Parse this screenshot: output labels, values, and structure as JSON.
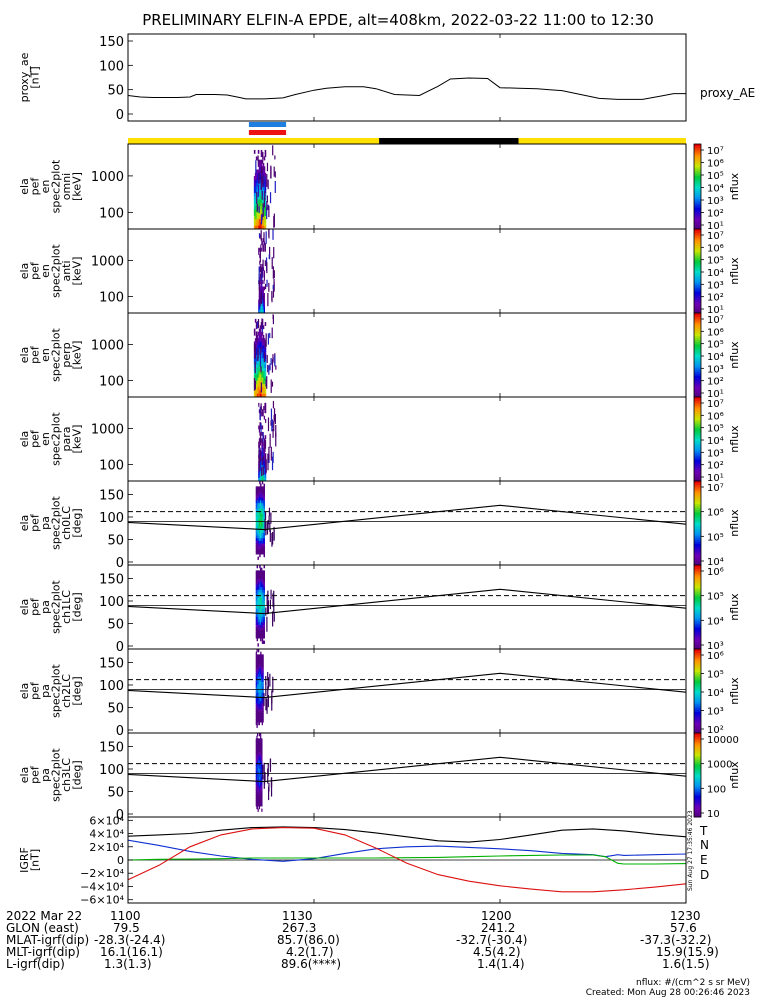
{
  "title": "PRELIMINARY ELFIN-A EPDE, alt=408km, 2022-03-22 11:00 to 12:30",
  "colors": {
    "orbit_yellow": "#ffe000",
    "orbit_black": "#000000",
    "bar_blue": "#1f7fe0",
    "bar_red": "#ee1111",
    "grf_T": "#000000",
    "grf_N": "#1030d0",
    "grf_E": "#00b000",
    "grf_D": "#dd1010"
  },
  "time_axis": {
    "start_min": 0,
    "end_min": 90,
    "ticks": [
      {
        "min": 0,
        "label": "1100"
      },
      {
        "min": 30,
        "label": "1130"
      },
      {
        "min": 60,
        "label": "1200"
      },
      {
        "min": 90,
        "label": "1230"
      }
    ]
  },
  "orbit_bar": {
    "segments": [
      {
        "from": 0,
        "to": 40.5,
        "color": "#ffe000"
      },
      {
        "from": 40.5,
        "to": 63,
        "color": "#000000"
      },
      {
        "from": 63,
        "to": 90,
        "color": "#ffe000"
      }
    ],
    "science_zone": {
      "from": 19.5,
      "to": 25.5
    }
  },
  "chart_data": [
    {
      "type": "line",
      "panel": "proxy_ae",
      "ylabel": [
        "proxy_ae",
        "[nT]"
      ],
      "ylim": [
        0,
        150
      ],
      "yticks": [
        0,
        50,
        100,
        150
      ],
      "series": [
        {
          "name": "proxy_AE",
          "x": [
            0,
            2,
            4,
            6,
            8,
            10,
            11,
            14,
            16,
            18,
            19,
            22,
            25,
            27,
            30,
            32,
            35,
            38,
            40,
            43,
            45,
            47,
            50,
            52,
            55,
            58,
            60,
            63,
            66,
            68,
            70,
            73,
            76,
            79,
            80,
            83,
            86,
            88,
            90
          ],
          "values": [
            38,
            35,
            34,
            34,
            34,
            35,
            40,
            40,
            39,
            34,
            31,
            31,
            33,
            40,
            49,
            53,
            56,
            56,
            52,
            40,
            39,
            38,
            57,
            72,
            74,
            73,
            54,
            53,
            52,
            50,
            48,
            40,
            32,
            30,
            30,
            30,
            37,
            42,
            42
          ]
        }
      ]
    },
    {
      "type": "heatmap",
      "panel": "spec_omni",
      "ylabel": [
        "ela",
        "pef",
        "en",
        "spec2plot",
        "omni",
        "[keV]"
      ],
      "yscale": "log",
      "yticks": [
        100,
        1000
      ],
      "colorbar": {
        "label": "nflux",
        "ticks": [
          "10⁷",
          "10⁶",
          "10⁵",
          "10⁴",
          "10³",
          "10²",
          "10¹"
        ]
      },
      "burst_min": [
        20.3,
        22.2
      ]
    },
    {
      "type": "heatmap",
      "panel": "spec_anti",
      "ylabel": [
        "ela",
        "pef",
        "en",
        "spec2plot",
        "anti",
        "[keV]"
      ],
      "yscale": "log",
      "yticks": [
        100,
        1000
      ],
      "colorbar": {
        "label": "nflux",
        "ticks": [
          "10⁷",
          "10⁶",
          "10⁵",
          "10⁴",
          "10³",
          "10²",
          "10¹"
        ]
      },
      "burst_min": [
        21.0,
        22.0
      ]
    },
    {
      "type": "heatmap",
      "panel": "spec_perp",
      "ylabel": [
        "ela",
        "pef",
        "en",
        "spec2plot",
        "perp",
        "[keV]"
      ],
      "yscale": "log",
      "yticks": [
        100,
        1000
      ],
      "colorbar": {
        "label": "nflux",
        "ticks": [
          "10⁷",
          "10⁶",
          "10⁵",
          "10⁴",
          "10³",
          "10²",
          "10¹"
        ]
      },
      "burst_min": [
        20.3,
        22.2
      ]
    },
    {
      "type": "heatmap",
      "panel": "spec_para",
      "ylabel": [
        "ela",
        "pef",
        "en",
        "spec2plot",
        "para",
        "[keV]"
      ],
      "yscale": "log",
      "yticks": [
        100,
        1000
      ],
      "colorbar": {
        "label": "nflux",
        "ticks": [
          "10⁷",
          "10⁶",
          "10⁵",
          "10⁴",
          "10³",
          "10²",
          "10¹"
        ]
      },
      "burst_min": [
        21.0,
        22.2
      ]
    },
    {
      "type": "heatmap",
      "panel": "pa_ch0",
      "ylabel": [
        "ela",
        "pef",
        "pa",
        "spec2plot",
        "ch0LC",
        "[deg]"
      ],
      "ylim": [
        0,
        180
      ],
      "yticks": [
        0,
        50,
        100,
        150
      ],
      "losscone": [
        [
          0,
          88
        ],
        [
          22,
          72
        ],
        [
          60,
          126
        ],
        [
          90,
          84
        ]
      ],
      "dashed_level": 112,
      "solid_level": 90,
      "colorbar": {
        "label": "nflux",
        "ticks": [
          "10⁷",
          "10⁶",
          "10⁵",
          "10⁴"
        ]
      },
      "burst_min": [
        20.6,
        22.0
      ]
    },
    {
      "type": "heatmap",
      "panel": "pa_ch1",
      "ylabel": [
        "ela",
        "pef",
        "pa",
        "spec2plot",
        "ch1LC",
        "[deg]"
      ],
      "ylim": [
        0,
        180
      ],
      "yticks": [
        0,
        50,
        100,
        150
      ],
      "losscone": [
        [
          0,
          88
        ],
        [
          22,
          72
        ],
        [
          60,
          126
        ],
        [
          90,
          84
        ]
      ],
      "dashed_level": 112,
      "solid_level": 90,
      "colorbar": {
        "label": "nflux",
        "ticks": [
          "10⁶",
          "10⁵",
          "10⁴",
          "10³"
        ]
      },
      "burst_min": [
        20.6,
        22.0
      ]
    },
    {
      "type": "heatmap",
      "panel": "pa_ch2",
      "ylabel": [
        "ela",
        "pef",
        "pa",
        "spec2plot",
        "ch2LC",
        "[deg]"
      ],
      "ylim": [
        0,
        180
      ],
      "yticks": [
        0,
        50,
        100,
        150
      ],
      "losscone": [
        [
          0,
          88
        ],
        [
          22,
          72
        ],
        [
          60,
          126
        ],
        [
          90,
          84
        ]
      ],
      "dashed_level": 112,
      "solid_level": 90,
      "colorbar": {
        "label": "nflux",
        "ticks": [
          "10⁶",
          "10⁵",
          "10⁴",
          "10³",
          "10²"
        ]
      },
      "burst_min": [
        20.6,
        21.8
      ]
    },
    {
      "type": "heatmap",
      "panel": "pa_ch3",
      "ylabel": [
        "ela",
        "pef",
        "pa",
        "spec2plot",
        "ch3LC",
        "[deg]"
      ],
      "ylim": [
        0,
        180
      ],
      "yticks": [
        0,
        50,
        100,
        150
      ],
      "losscone": [
        [
          0,
          88
        ],
        [
          22,
          72
        ],
        [
          60,
          126
        ],
        [
          90,
          84
        ]
      ],
      "dashed_level": 112,
      "solid_level": 90,
      "colorbar": {
        "label": "nflux",
        "ticks": [
          "10000",
          "1000",
          "100",
          "10"
        ]
      },
      "burst_min": [
        20.6,
        21.6
      ]
    },
    {
      "type": "line",
      "panel": "igrf",
      "ylabel": [
        "IGRF",
        "[nT]"
      ],
      "ylim": [
        -65000,
        65000
      ],
      "yticks": [
        {
          "v": 60000,
          "label": "6×10⁴"
        },
        {
          "v": 40000,
          "label": "4×10⁴"
        },
        {
          "v": 20000,
          "label": "2×10⁴"
        },
        {
          "v": 0,
          "label": "0"
        },
        {
          "v": -20000,
          "label": "−2×10⁴"
        },
        {
          "v": -40000,
          "label": "−4×10⁴"
        },
        {
          "v": -60000,
          "label": "−6×10⁴"
        }
      ],
      "legend": [
        "T",
        "N",
        "E",
        "D"
      ],
      "series": [
        {
          "name": "T",
          "x": [
            0,
            5,
            10,
            15,
            20,
            25,
            30,
            35,
            40,
            45,
            50,
            55,
            60,
            65,
            70,
            75,
            80,
            85,
            90
          ],
          "values": [
            36000,
            38000,
            40000,
            45000,
            49000,
            50000,
            49000,
            46000,
            41000,
            35000,
            29000,
            27000,
            31000,
            38000,
            45000,
            47000,
            44000,
            39000,
            35000
          ]
        },
        {
          "name": "N",
          "x": [
            0,
            5,
            10,
            15,
            20,
            25,
            30,
            35,
            40,
            45,
            50,
            55,
            60,
            65,
            70,
            75,
            77,
            79,
            80,
            85,
            90
          ],
          "values": [
            30000,
            22000,
            13000,
            6000,
            1000,
            -2000,
            2000,
            10000,
            17000,
            20000,
            21000,
            19000,
            17000,
            14000,
            10000,
            8000,
            5000,
            8000,
            7000,
            8000,
            9000
          ]
        },
        {
          "name": "E",
          "x": [
            0,
            5,
            10,
            15,
            20,
            25,
            30,
            35,
            40,
            45,
            50,
            55,
            60,
            65,
            70,
            75,
            77,
            79,
            80,
            85,
            90
          ],
          "values": [
            0,
            1000,
            1500,
            2000,
            3000,
            3000,
            3000,
            3000,
            3000,
            3500,
            4000,
            5000,
            6000,
            7000,
            7500,
            7500,
            5000,
            -5000,
            -6000,
            -6000,
            -5500
          ]
        },
        {
          "name": "D",
          "x": [
            0,
            5,
            10,
            15,
            20,
            25,
            30,
            35,
            40,
            45,
            50,
            55,
            60,
            65,
            70,
            75,
            80,
            85,
            90
          ],
          "values": [
            -30000,
            -8000,
            20000,
            38000,
            47000,
            49000,
            48000,
            38000,
            18000,
            -5000,
            -22000,
            -32000,
            -39000,
            -44000,
            -48000,
            -48000,
            -45000,
            -41000,
            -36000
          ]
        }
      ]
    }
  ],
  "igrf_side_label": "Sun Aug 27 17:35:46 2023",
  "footer": {
    "rows": [
      {
        "label": "2022 Mar 22",
        "values": [
          "1100",
          "1130",
          "1200",
          "1230"
        ]
      },
      {
        "label": "GLON (east)",
        "values": [
          "79.5",
          "267.3",
          "241.2",
          "57.6"
        ]
      },
      {
        "label": "MLAT-igrf(dip)",
        "values": [
          "-28.3(-24.4)",
          "85.7(86.0)",
          "-32.7(-30.4)",
          "-37.3(-32.2)"
        ]
      },
      {
        "label": "MLT-igrf(dip)",
        "values": [
          "16.1(16.1)",
          "4.2(1.7)",
          "4.5(4.2)",
          "15.9(15.9)"
        ]
      },
      {
        "label": "L-igrf(dip)",
        "values": [
          "1.3(1.3)",
          "89.6(****)",
          "1.4(1.4)",
          "1.6(1.5)"
        ]
      }
    ],
    "note1": "nflux: #/(cm^2 s sr MeV)",
    "note2": "Created: Mon Aug 28 00:26:46 2023"
  }
}
